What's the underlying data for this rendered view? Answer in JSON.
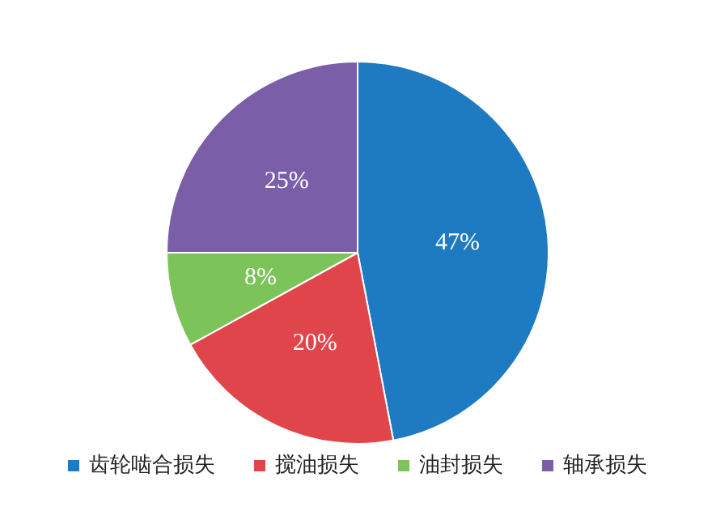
{
  "chart_data": {
    "type": "pie",
    "categories": [
      "齿轮啮合损失",
      "搅油损失",
      "油封损失",
      "轴承损失"
    ],
    "values": [
      47,
      20,
      8,
      25
    ],
    "colors": [
      "#1f7bc1",
      "#e0454b",
      "#7cc35a",
      "#7b5ea8"
    ],
    "value_labels": [
      "47%",
      "20%",
      "8%",
      "25%"
    ],
    "legend": "bottom"
  }
}
